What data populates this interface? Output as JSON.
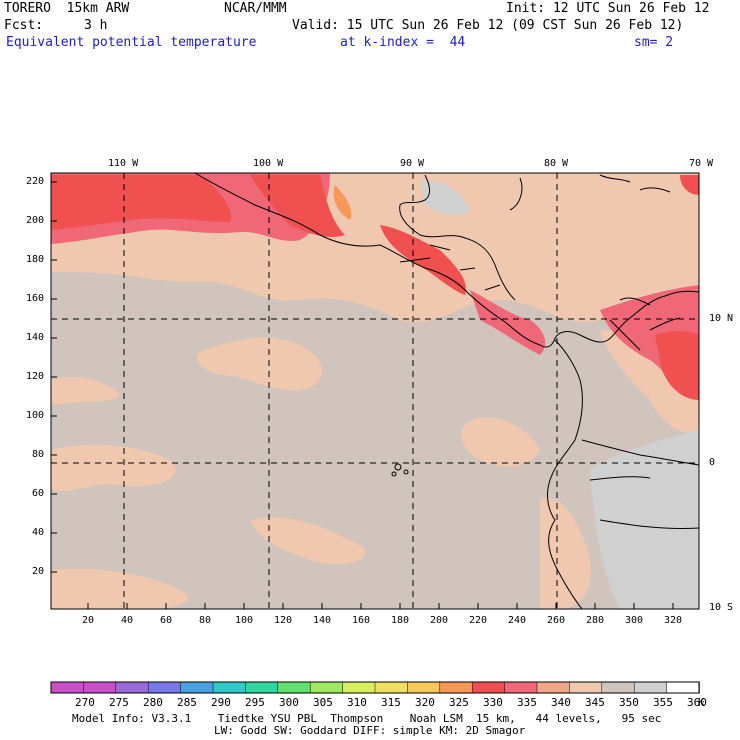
{
  "header": {
    "model": "TORERO  15km ARW",
    "center": "NCAR/MMM",
    "init": "Init: 12 UTC Sun 26 Feb 12",
    "fcst_label": "Fcst:",
    "fcst_value": "3 h",
    "valid": "Valid: 15 UTC Sun 26 Feb 12 (09 CST Sun 26 Feb 12)",
    "field": "Equivalent potential temperature",
    "level": "at k-index =  44",
    "smoothing": "sm= 2"
  },
  "axes": {
    "top_lon": [
      "110 W",
      "100 W",
      "90 W",
      "80 W",
      "70 W"
    ],
    "right_lat": [
      "10 N",
      "0",
      "10 S"
    ],
    "left_y": [
      "220",
      "200",
      "180",
      "160",
      "140",
      "120",
      "100",
      "80",
      "60",
      "40",
      "20"
    ],
    "bottom_x": [
      "20",
      "40",
      "60",
      "80",
      "100",
      "120",
      "140",
      "160",
      "180",
      "200",
      "220",
      "240",
      "260",
      "280",
      "300",
      "320"
    ]
  },
  "colorbar": {
    "unit": "K",
    "levels": [
      "270",
      "275",
      "280",
      "285",
      "290",
      "295",
      "300",
      "305",
      "310",
      "315",
      "320",
      "325",
      "330",
      "335",
      "340",
      "345",
      "350",
      "355",
      "360"
    ],
    "colors": [
      "#c850c8",
      "#9a6ad8",
      "#7878e8",
      "#4aa0e0",
      "#30c8c8",
      "#30d8a0",
      "#60e070",
      "#a0e860",
      "#d8f060",
      "#f0e060",
      "#f8c858",
      "#f89858",
      "#f05050",
      "#f06878",
      "#f0a888",
      "#f0c8b0",
      "#d0c4bc",
      "#d0d0d0",
      "#ffffff"
    ]
  },
  "footer": {
    "line1": "Model Info: V3.3.1    Tiedtke YSU PBL  Thompson    Noah LSM  15 km,   44 levels,   95 sec",
    "line2": "LW: Godd SW: Goddard DIFF: simple KM: 2D Smagor"
  }
}
